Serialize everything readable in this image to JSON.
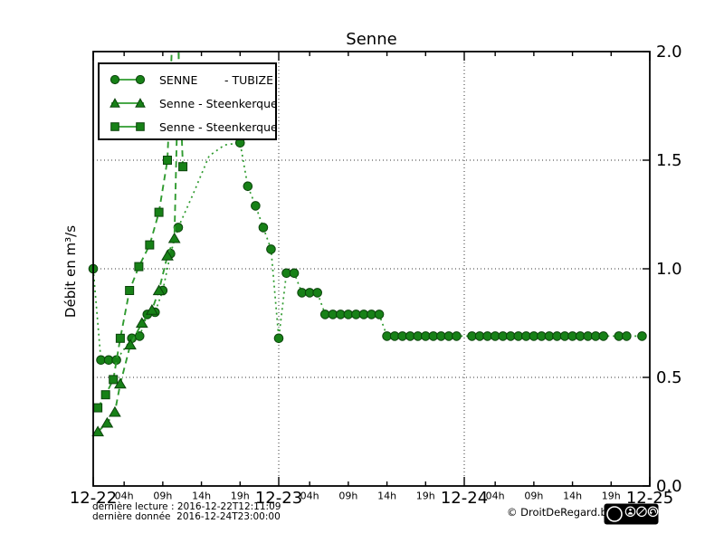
{
  "header": {
    "title": "Senne"
  },
  "legend": {
    "entries": [
      {
        "label": "SENNE",
        "label2": "- TUBIZE"
      },
      {
        "label": "Senne - Steenkerque"
      },
      {
        "label": "Senne - Steenkerque"
      }
    ]
  },
  "footer": {
    "last_reading": "dernière lecture : 2016-12-22T12:11:09",
    "last_data": "dernière donnée  2016-12-24T23:00:00",
    "copyright": "© DroitDeRegard.be",
    "license": "CC BY-NC-SA",
    "license_cc": "cc",
    "license_by": "BY",
    "license_nc": "NC",
    "license_sa": "SA"
  },
  "chart_data": {
    "type": "line",
    "title": "Senne",
    "xlabel": "",
    "ylabel": "Débit en m³/s",
    "xlim_hours": [
      0,
      72
    ],
    "ylim": [
      0.0,
      2.0
    ],
    "grid": true,
    "legend_position": "upper left",
    "x_day_labels": [
      "12-22",
      "12-23",
      "12-24",
      "12-25"
    ],
    "x_hour_labels": [
      "04h",
      "09h",
      "14h",
      "19h"
    ],
    "x_hour_offsets": [
      4,
      9,
      14,
      19
    ],
    "x_day_gridlines_hours": [
      24,
      48
    ],
    "y_ticks": [
      0.0,
      0.5,
      1.0,
      1.5,
      2.0
    ],
    "y_tick_labels": [
      "0.0",
      "0.5",
      "1.0",
      "1.5",
      "2.0"
    ],
    "y_gridlines": [
      0.5,
      1.0,
      1.5
    ],
    "colors": {
      "marker_fill": "#178117",
      "marker_edge": "#0b430b",
      "line": "#2f9b2f",
      "grid": "#333333",
      "frame": "#000000"
    },
    "series": [
      {
        "name": "SENNE - TUBIZE",
        "station": "Tubize",
        "marker": "circle",
        "line": "dotted",
        "points": [
          [
            0,
            1.0
          ],
          [
            1,
            0.58
          ],
          [
            2,
            0.58
          ],
          [
            3,
            0.58
          ],
          [
            5,
            0.68
          ],
          [
            6,
            0.69
          ],
          [
            7,
            0.79
          ],
          [
            8,
            0.8
          ],
          [
            9,
            0.9
          ],
          [
            10,
            1.07
          ],
          [
            11,
            1.19
          ],
          [
            13,
            1.35,
            0
          ],
          [
            15,
            1.52,
            0
          ],
          [
            17,
            1.57,
            0
          ],
          [
            19,
            1.58
          ],
          [
            20,
            1.38
          ],
          [
            21,
            1.29
          ],
          [
            22,
            1.19
          ],
          [
            23,
            1.09
          ],
          [
            24,
            0.68
          ],
          [
            25,
            0.98
          ],
          [
            26,
            0.98
          ],
          [
            27,
            0.89
          ],
          [
            28,
            0.89
          ],
          [
            29,
            0.89
          ],
          [
            30,
            0.79
          ],
          [
            31,
            0.79
          ],
          [
            32,
            0.79
          ],
          [
            33,
            0.79
          ],
          [
            34,
            0.79
          ],
          [
            35,
            0.79
          ],
          [
            36,
            0.79
          ],
          [
            37,
            0.79
          ],
          [
            38,
            0.69
          ],
          [
            39,
            0.69
          ],
          [
            40,
            0.69
          ],
          [
            41,
            0.69
          ],
          [
            42,
            0.69
          ],
          [
            43,
            0.69
          ],
          [
            44,
            0.69
          ],
          [
            45,
            0.69
          ],
          [
            46,
            0.69
          ],
          [
            47,
            0.69
          ],
          [
            49,
            0.69
          ],
          [
            50,
            0.69
          ],
          [
            51,
            0.69
          ],
          [
            52,
            0.69
          ],
          [
            53,
            0.69
          ],
          [
            54,
            0.69
          ],
          [
            55,
            0.69
          ],
          [
            56,
            0.69
          ],
          [
            57,
            0.69
          ],
          [
            58,
            0.69
          ],
          [
            59,
            0.69
          ],
          [
            60,
            0.69
          ],
          [
            61,
            0.69
          ],
          [
            62,
            0.69
          ],
          [
            63,
            0.69
          ],
          [
            64,
            0.69
          ],
          [
            65,
            0.69
          ],
          [
            66,
            0.69
          ],
          [
            68,
            0.69
          ],
          [
            69,
            0.69
          ],
          [
            71,
            0.69
          ]
        ]
      },
      {
        "name": "Senne - Steenkerque",
        "station": "Steenkerque",
        "marker": "triangle",
        "line": "dashed",
        "points": [
          [
            0.6,
            0.25
          ],
          [
            1.8,
            0.29
          ],
          [
            2.8,
            0.34
          ],
          [
            3.5,
            0.47
          ],
          [
            4.8,
            0.65
          ],
          [
            6.3,
            0.75
          ],
          [
            7.6,
            0.81
          ],
          [
            8.5,
            0.9
          ],
          [
            9.6,
            1.06
          ],
          [
            10.5,
            1.14
          ],
          [
            11.4,
            2.5,
            0
          ]
        ]
      },
      {
        "name": "Senne - Steenkerque",
        "station": "Steenkerque",
        "marker": "square",
        "line": "dashed",
        "points": [
          [
            0.6,
            0.36
          ],
          [
            1.6,
            0.42
          ],
          [
            2.6,
            0.49
          ],
          [
            3.5,
            0.68
          ],
          [
            4.7,
            0.9
          ],
          [
            5.9,
            1.01
          ],
          [
            7.3,
            1.11
          ],
          [
            8.5,
            1.26
          ],
          [
            9.6,
            1.5
          ],
          [
            10.6,
            2.4,
            0
          ],
          [
            11.6,
            1.47
          ]
        ]
      }
    ]
  }
}
